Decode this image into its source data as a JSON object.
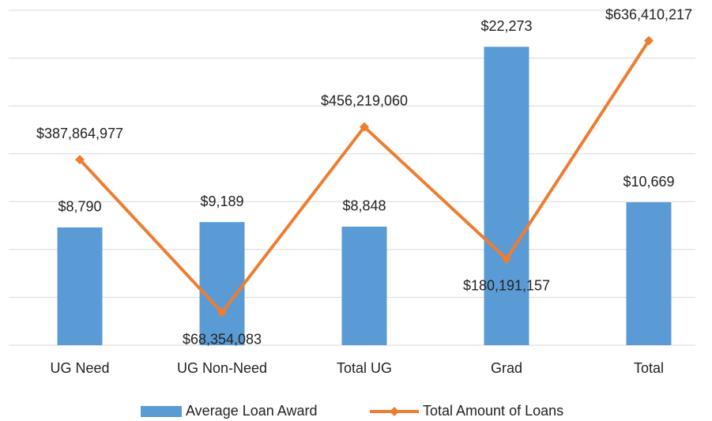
{
  "chart_data": {
    "type": "bar-line",
    "categories": [
      "UG Need",
      "UG Non-Need",
      "Total UG",
      "Grad",
      "Total"
    ],
    "series": [
      {
        "name": "Average Loan Award",
        "type": "bar",
        "color": "#5b9bd5",
        "axis": "y",
        "values": [
          8790,
          9189,
          8848,
          22273,
          10669
        ],
        "value_labels": [
          "$8,790",
          "$9,189",
          "$8,848",
          "$22,273",
          "$10,669"
        ]
      },
      {
        "name": "Total Amount of Loans",
        "type": "line",
        "color": "#ed7d31",
        "axis": "y2",
        "values": [
          387864977,
          68354083,
          456219060,
          180191157,
          636410217
        ],
        "value_labels": [
          "$387,864,977",
          "$68,354,083",
          "$456,219,060",
          "$180,191,157",
          "$636,410,217"
        ]
      }
    ],
    "ylim": [
      0,
      25000
    ],
    "y2lim": [
      0,
      700000000
    ],
    "y2ticks": [
      0,
      100000000,
      200000000,
      300000000,
      400000000,
      500000000,
      600000000,
      700000000
    ],
    "tick_labels_visible": false,
    "grid": true,
    "legend": "bottom"
  }
}
